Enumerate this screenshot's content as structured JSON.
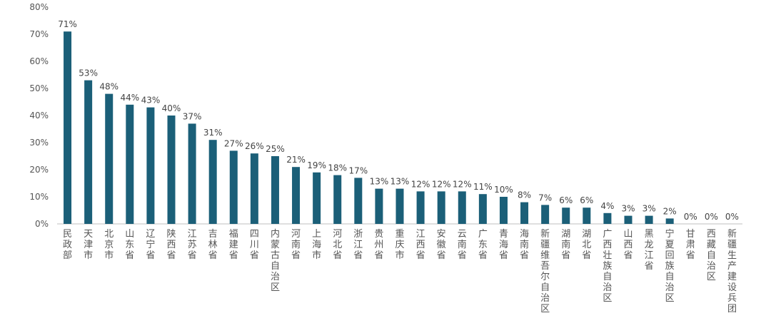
{
  "chart_data": {
    "type": "bar",
    "title": "",
    "xlabel": "",
    "ylabel": "",
    "ylim": [
      0,
      80
    ],
    "yticks": [
      "0%",
      "10%",
      "20%",
      "30%",
      "40%",
      "50%",
      "60%",
      "70%",
      "80%"
    ],
    "grid": false,
    "bar_color": "#1b5f78",
    "categories": [
      "民政部",
      "天津市",
      "北京市",
      "山东省",
      "辽宁省",
      "陕西省",
      "江苏省",
      "吉林省",
      "福建省",
      "四川省",
      "内蒙古自治区",
      "河南省",
      "上海市",
      "河北省",
      "浙江省",
      "贵州省",
      "重庆市",
      "江西省",
      "安徽省",
      "云南省",
      "广东省",
      "青海省",
      "海南省",
      "新疆维吾尔自治区",
      "湖南省",
      "湖北省",
      "广西壮族自治区",
      "山西省",
      "黑龙江省",
      "宁夏回族自治区",
      "甘肃省",
      "西藏自治区",
      "新疆生产建设兵团"
    ],
    "values": [
      71,
      53,
      48,
      44,
      43,
      40,
      37,
      31,
      27,
      26,
      25,
      21,
      19,
      18,
      17,
      13,
      13,
      12,
      12,
      12,
      11,
      10,
      8,
      7,
      6,
      6,
      4,
      3,
      3,
      2,
      0,
      0,
      0
    ],
    "value_labels": [
      "71%",
      "53%",
      "48%",
      "44%",
      "43%",
      "40%",
      "37%",
      "31%",
      "27%",
      "26%",
      "25%",
      "21%",
      "19%",
      "18%",
      "17%",
      "13%",
      "13%",
      "12%",
      "12%",
      "12%",
      "11%",
      "10%",
      "8%",
      "7%",
      "6%",
      "6%",
      "4%",
      "3%",
      "3%",
      "2%",
      "0%",
      "0%",
      "0%"
    ]
  }
}
